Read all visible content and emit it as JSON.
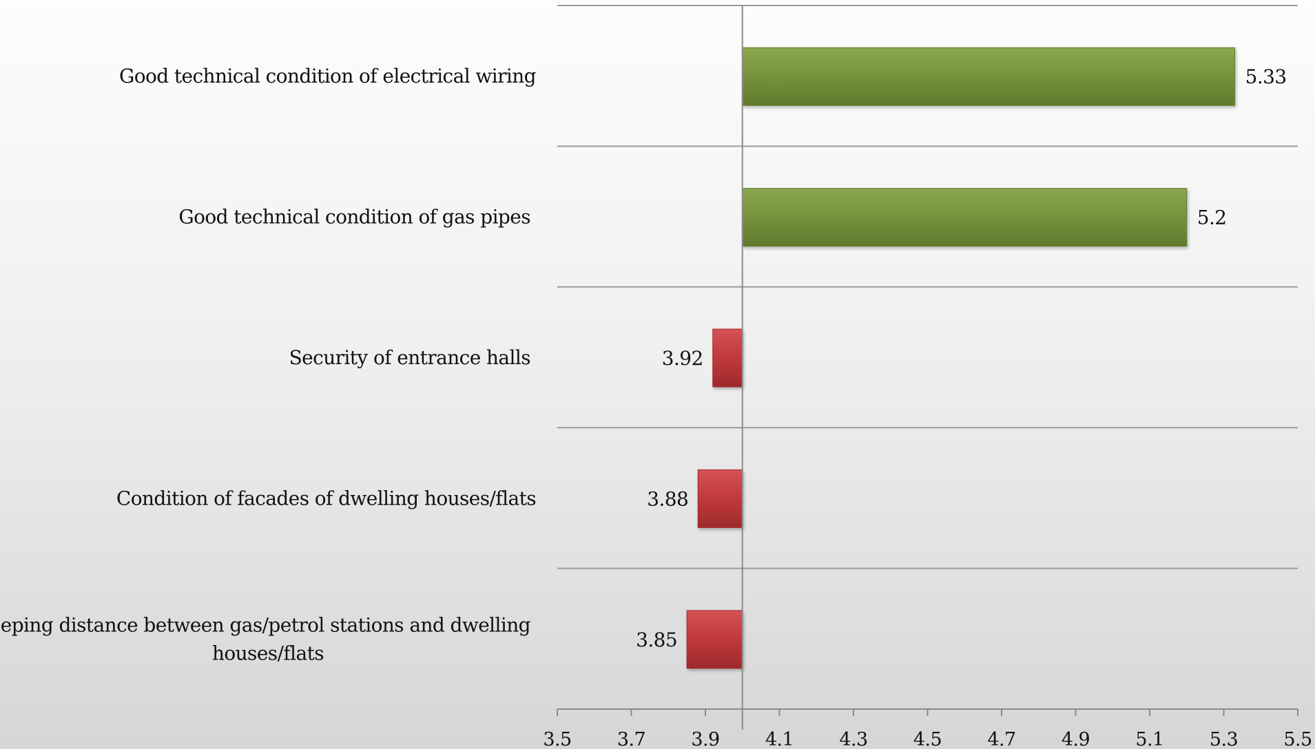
{
  "chart_data": {
    "type": "bar",
    "orientation": "horizontal",
    "baseline": 4.0,
    "categories": [
      "Good technical condition of electrical wiring",
      "Good technical condition of gas pipes",
      "Security of entrance halls",
      "Condition of facades of dwelling houses/flats",
      "Keeping distance between gas/petrol stations and dwelling houses/flats"
    ],
    "category_lines": [
      [
        "Good technical condition of electrical wiring"
      ],
      [
        "Good technical condition of gas pipes"
      ],
      [
        "Security of entrance halls"
      ],
      [
        "Condition of facades of dwelling houses/flats"
      ],
      [
        "Keeping distance between gas/petrol stations and dwelling",
        "houses/flats"
      ]
    ],
    "values": [
      5.33,
      5.2,
      3.92,
      3.88,
      3.85
    ],
    "value_labels": [
      "5.33",
      "5.2",
      "3.92",
      "3.88",
      "3.85"
    ],
    "xlim": [
      3.5,
      5.5
    ],
    "xticks": [
      "3.5",
      "3.7",
      "3.9",
      "4.1",
      "4.3",
      "4.5",
      "4.7",
      "4.9",
      "5.1",
      "5.3",
      "5.5"
    ],
    "grid": "horizontal",
    "legend": "none",
    "title": "",
    "xlabel": "",
    "ylabel": "",
    "colors": {
      "positive": "#76923c",
      "negative": "#c0393b"
    }
  }
}
